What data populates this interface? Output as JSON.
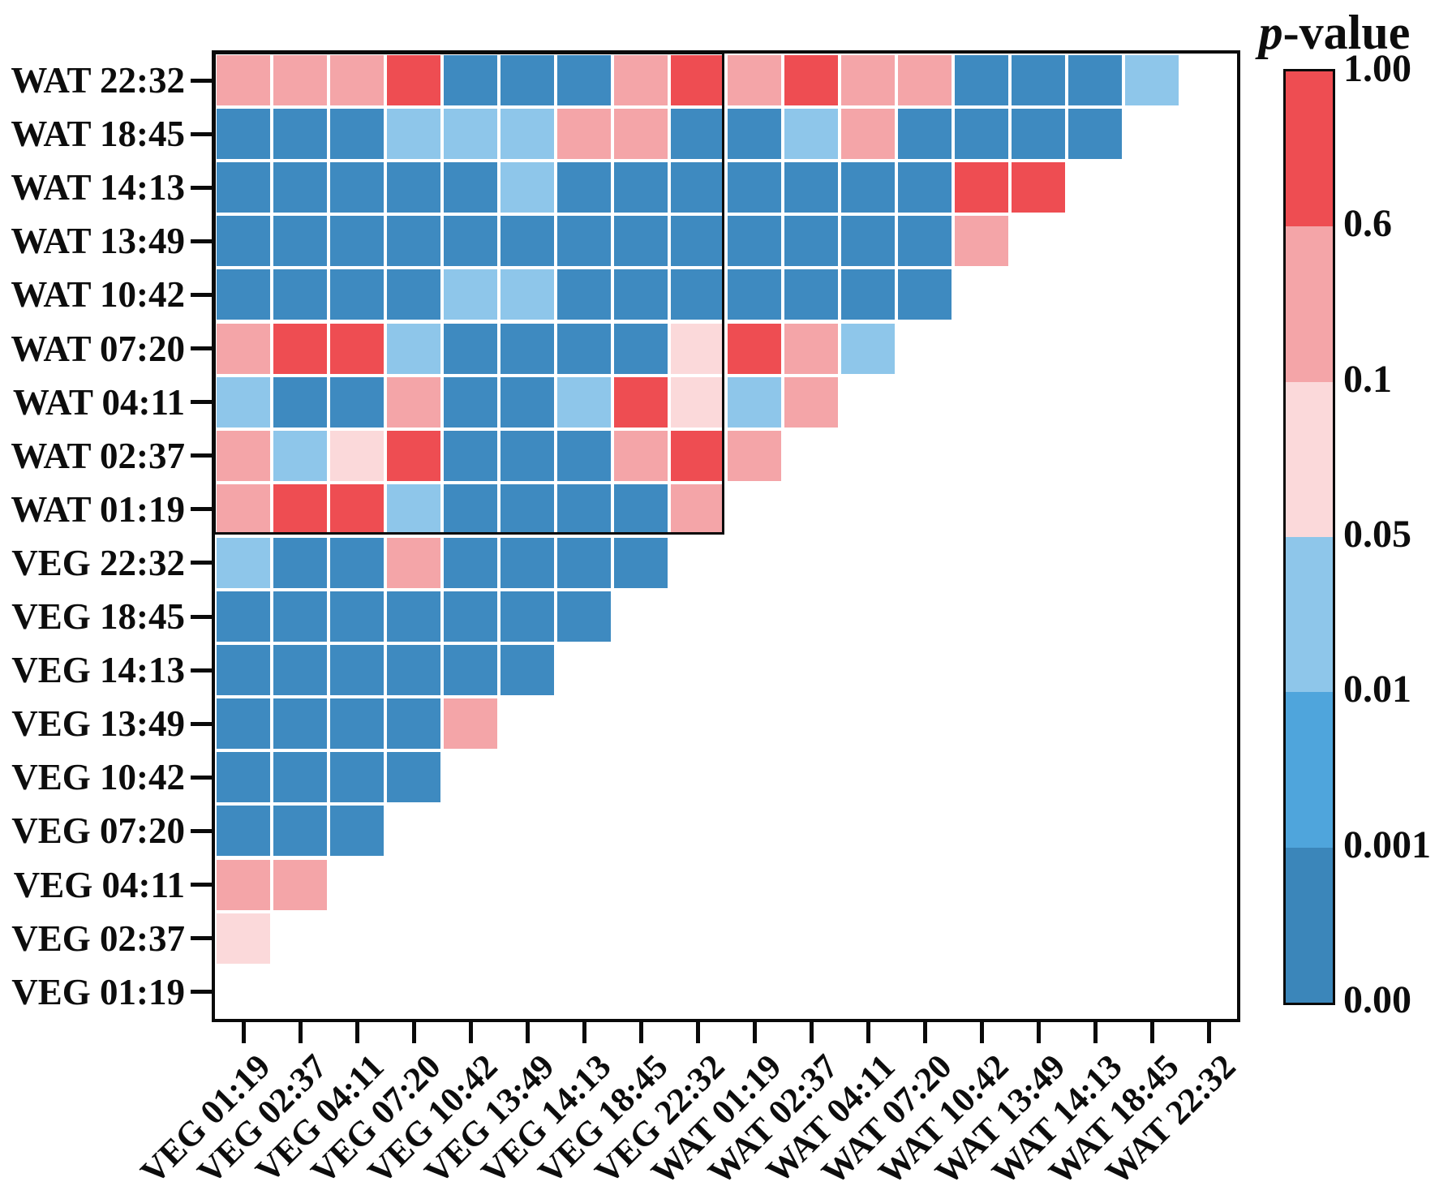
{
  "legend": {
    "title_italic": "p",
    "title_rest": "-value",
    "tick_labels": [
      "1.00",
      "0.6",
      "0.1",
      "0.05",
      "0.01",
      "0.001",
      "0.00"
    ],
    "band_colors_top_to_bottom": [
      "#ee4d52",
      "#f4a5a8",
      "#fbd9da",
      "#8ec6ea",
      "#4fa5dc",
      "#3b86ba"
    ]
  },
  "chart_data": {
    "type": "heatmap",
    "colorbar_title": "p-value",
    "legend_position": "right",
    "grid": "white gaps between cells",
    "x_categories": [
      "VEG 01:19",
      "VEG 02:37",
      "VEG 04:11",
      "VEG 07:20",
      "VEG 10:42",
      "VEG 13:49",
      "VEG 14:13",
      "VEG 18:45",
      "VEG 22:32",
      "WAT 01:19",
      "WAT 02:37",
      "WAT 04:11",
      "WAT 07:20",
      "WAT 10:42",
      "WAT 13:49",
      "WAT 14:13",
      "WAT 18:45",
      "WAT 22:32"
    ],
    "y_categories_top_to_bottom": [
      "WAT 22:32",
      "WAT 18:45",
      "WAT 14:13",
      "WAT 13:49",
      "WAT 10:42",
      "WAT 07:20",
      "WAT 04:11",
      "WAT 02:37",
      "WAT 01:19",
      "VEG 22:32",
      "VEG 18:45",
      "VEG 14:13",
      "VEG 13:49",
      "VEG 10:42",
      "VEG 07:20",
      "VEG 04:11",
      "VEG 02:37",
      "VEG 01:19"
    ],
    "value_bins": {
      "B": "0.00-0.001",
      "MB": "0.001-0.01",
      "LB": "0.01-0.05",
      "LP": "0.05-0.1",
      "P": "0.1-0.6",
      "R": "0.6-1.00"
    },
    "bin_colors": {
      "B": "#3e8ac0",
      "MB": "#4fa5dc",
      "LB": "#8ec6ea",
      "LP": "#fbd9da",
      "P": "#f4a5a8",
      "R": "#ee4d52"
    },
    "cells_by_row_top_to_bottom": [
      [
        "P",
        "P",
        "P",
        "R",
        "B",
        "B",
        "B",
        "P",
        "R",
        "P",
        "R",
        "P",
        "P",
        "B",
        "B",
        "B",
        "LB"
      ],
      [
        "B",
        "B",
        "B",
        "LB",
        "LB",
        "LB",
        "P",
        "P",
        "B",
        "B",
        "LB",
        "P",
        "B",
        "B",
        "B",
        "B"
      ],
      [
        "B",
        "B",
        "B",
        "B",
        "B",
        "LB",
        "B",
        "B",
        "B",
        "B",
        "B",
        "B",
        "B",
        "R",
        "R"
      ],
      [
        "B",
        "B",
        "B",
        "B",
        "B",
        "B",
        "B",
        "B",
        "B",
        "B",
        "B",
        "B",
        "B",
        "P"
      ],
      [
        "B",
        "B",
        "B",
        "B",
        "LB",
        "LB",
        "B",
        "B",
        "B",
        "B",
        "B",
        "B",
        "B"
      ],
      [
        "P",
        "R",
        "R",
        "LB",
        "B",
        "B",
        "B",
        "B",
        "LP",
        "R",
        "P",
        "LB"
      ],
      [
        "LB",
        "B",
        "B",
        "P",
        "B",
        "B",
        "LB",
        "R",
        "LP",
        "LB",
        "P"
      ],
      [
        "P",
        "LB",
        "LP",
        "R",
        "B",
        "B",
        "B",
        "P",
        "R",
        "P"
      ],
      [
        "P",
        "R",
        "R",
        "LB",
        "B",
        "B",
        "B",
        "B",
        "P"
      ],
      [
        "LB",
        "B",
        "B",
        "P",
        "B",
        "B",
        "B",
        "B"
      ],
      [
        "B",
        "B",
        "B",
        "B",
        "B",
        "B",
        "B"
      ],
      [
        "B",
        "B",
        "B",
        "B",
        "B",
        "B"
      ],
      [
        "B",
        "B",
        "B",
        "B",
        "P"
      ],
      [
        "B",
        "B",
        "B",
        "B"
      ],
      [
        "B",
        "B",
        "B"
      ],
      [
        "P",
        "P"
      ],
      [
        "LP"
      ],
      []
    ],
    "highlight_box": {
      "row_start": 0,
      "row_count": 9,
      "col_start": 0,
      "col_count": 9,
      "note": "black rectangle around WAT rows x VEG columns"
    },
    "colorbar_ticks": [
      "1.00",
      "0.6",
      "0.1",
      "0.05",
      "0.01",
      "0.001",
      "0.00"
    ]
  }
}
